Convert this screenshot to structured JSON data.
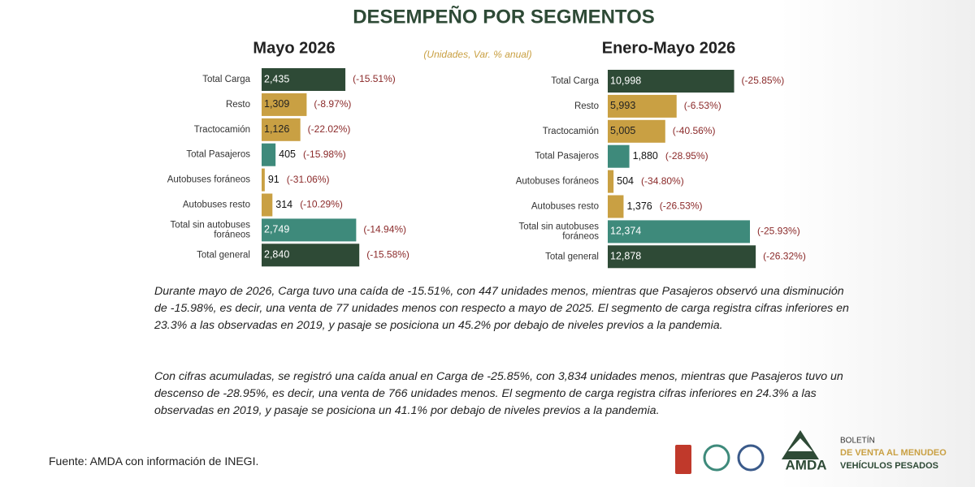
{
  "title": "DESEMPEÑO POR SEGMENTOS",
  "note": "(Unidades, Var. % anual)",
  "chart_data": [
    {
      "type": "bar",
      "orientation": "horizontal",
      "title": "Mayo 2026",
      "categories": [
        "Total Carga",
        "Resto",
        "Tractocamión",
        "Total Pasajeros",
        "Autobuses foráneos",
        "Autobuses resto",
        "Total sin autobuses\nforáneos",
        "Total general"
      ],
      "values": [
        2435,
        1309,
        1126,
        405,
        91,
        314,
        2749,
        2840
      ],
      "value_labels": [
        "2,435",
        "1,309",
        "1,126",
        "405",
        "91",
        "314",
        "2,749",
        "2,840"
      ],
      "annotations": [
        "(-15.51%)",
        "(-8.97%)",
        "(-22.02%)",
        "(-15.98%)",
        "(-31.06%)",
        "(-10.29%)",
        "(-14.94%)",
        "(-15.58%)"
      ],
      "colors": [
        "#2e4a36",
        "#c9a043",
        "#c9a043",
        "#3e8a7b",
        "#c9a043",
        "#c9a043",
        "#3e8a7b",
        "#2e4a36"
      ],
      "xlim": [
        0,
        3000
      ]
    },
    {
      "type": "bar",
      "orientation": "horizontal",
      "title": "Enero-Mayo 2026",
      "categories": [
        "Total Carga",
        "Resto",
        "Tractocamión",
        "Total Pasajeros",
        "Autobuses foráneos",
        "Autobuses resto",
        "Total sin autobuses\nforáneos",
        "Total general"
      ],
      "values": [
        10998,
        5993,
        5005,
        1880,
        504,
        1376,
        12374,
        12878
      ],
      "value_labels": [
        "10,998",
        "5,993",
        "5,005",
        "1,880",
        "504",
        "1,376",
        "12,374",
        "12,878"
      ],
      "annotations": [
        "(-25.85%)",
        "(-6.53%)",
        "(-40.56%)",
        "(-28.95%)",
        "(-34.80%)",
        "(-26.53%)",
        "(-25.93%)",
        "(-26.32%)"
      ],
      "colors": [
        "#2e4a36",
        "#c9a043",
        "#c9a043",
        "#3e8a7b",
        "#c9a043",
        "#c9a043",
        "#3e8a7b",
        "#2e4a36"
      ],
      "xlim": [
        0,
        14000
      ]
    }
  ],
  "paragraphs": [
    "Durante mayo de 2026, Carga tuvo una caída de -15.51%, con 447 unidades menos, mientras que Pasajeros observó una disminución de -15.98%, es decir, una venta de 77 unidades menos con respecto a mayo de 2025. El segmento de carga registra cifras inferiores en 23.3% a las observadas en 2019, y pasaje se posiciona un 45.2% por debajo de niveles previos a la pandemia.",
    "Con cifras acumuladas, se registró una caída anual en Carga de -25.85%, con 3,834 unidades menos, mientras que Pasajeros tuvo un descenso de -28.95%, es decir, una venta de 766 unidades menos. El segmento de carga registra cifras inferiores en 24.3% a las observadas en 2019, y pasaje se posiciona un 41.1% por debajo de niveles previos a la pandemia."
  ],
  "source": "Fuente: AMDA con información de INEGI.",
  "logo": {
    "name": "AMDA",
    "lines": [
      "BOLETÍN",
      "DE VENTA AL MENUDEO",
      "VEHÍCULOS PESADOS"
    ]
  }
}
